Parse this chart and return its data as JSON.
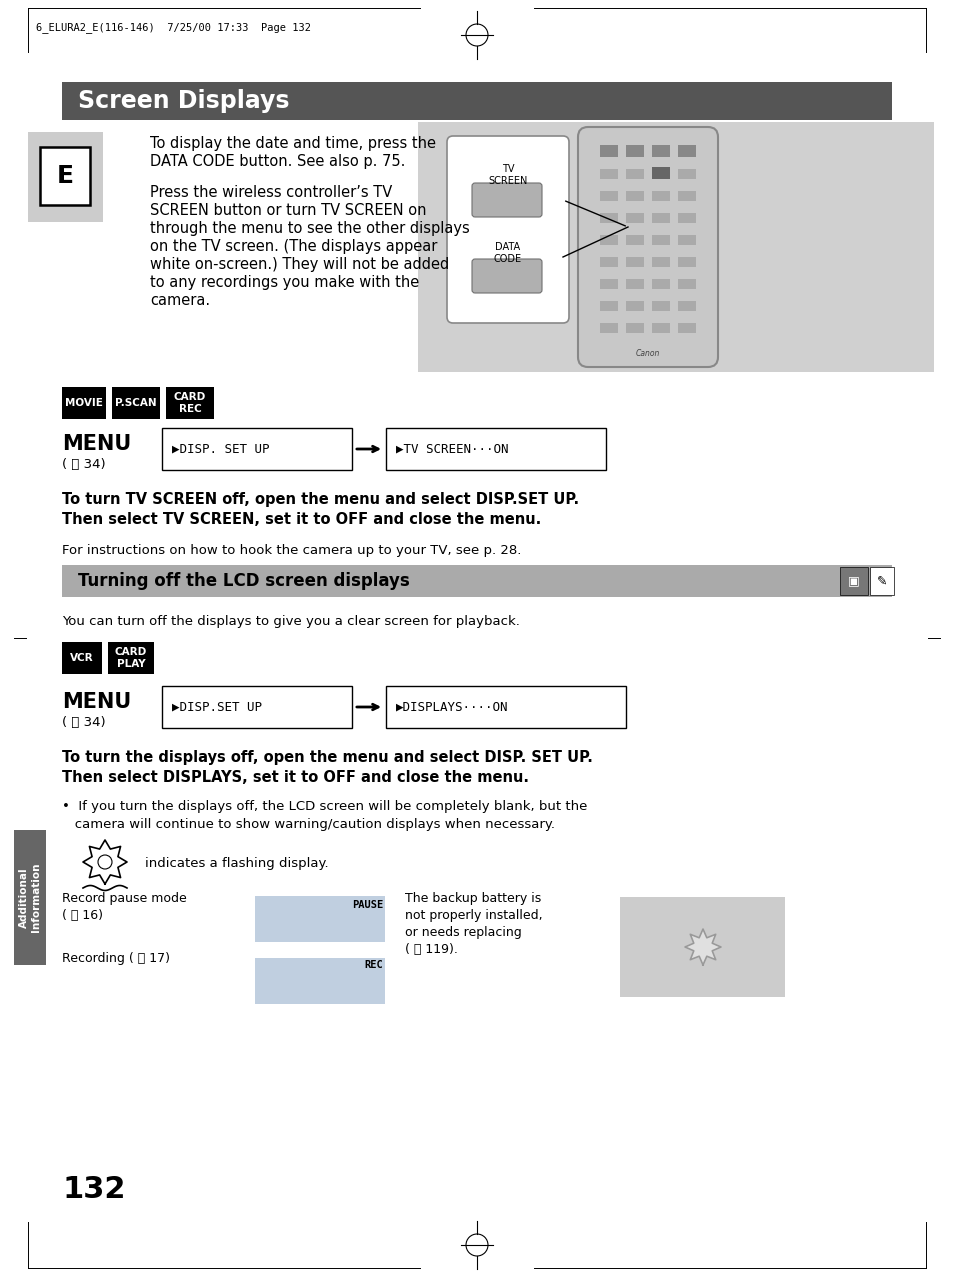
{
  "page_bg": "#ffffff",
  "header_text": "6_ELURA2_E(116-146)  7/25/00 17:33  Page 132",
  "main_title": "Screen Displays",
  "main_title_bg": "#555555",
  "main_title_color": "#ffffff",
  "section2_title": "Turning off the LCD screen displays",
  "section2_title_bg": "#aaaaaa",
  "section2_title_color": "#000000",
  "sidebar_bg": "#666666",
  "sidebar_label": "Additional\nInformation",
  "e_box_bg": "#cccccc",
  "e_box_text": "E",
  "para1_line1": "To display the date and time, press the",
  "para1_line2": "DATA CODE button. See also p. 75.",
  "para2_line1": "Press the wireless controller’s TV",
  "para2_line2": "SCREEN button or turn TV SCREEN on",
  "para2_line3": "through the menu to see the other displays",
  "para2_line4": "on the TV screen. (The displays appear",
  "para2_line5": "white on-screen.) They will not be added",
  "para2_line6": "to any recordings you make with the",
  "para2_line7": "camera.",
  "bold_text1_line1": "To turn TV SCREEN off, open the menu and select DISP.SET UP.",
  "bold_text1_line2": "Then select TV SCREEN, set it to OFF and close the menu.",
  "normal_text1": "For instructions on how to hook the camera up to your TV, see p. 28.",
  "lcd_para": "You can turn off the displays to give you a clear screen for playback.",
  "bold_text2_line1": "To turn the displays off, open the menu and select DISP. SET UP.",
  "bold_text2_line2": "Then select DISPLAYS, set it to OFF and close the menu.",
  "bullet1_line1": "•  If you turn the displays off, the LCD screen will be completely blank, but the",
  "bullet1_line2": "   camera will continue to show warning/caution displays when necessary.",
  "flash_text": "indicates a flashing display.",
  "record_pause_text1": "Record pause mode",
  "record_pause_text2": "( ⧨ 16)",
  "recording_text1": "Recording ( ⧨ 17)",
  "battery_text1": "The backup battery is",
  "battery_text2": "not properly installed,",
  "battery_text3": "or needs replacing",
  "battery_text4": "( ⧨ 119).",
  "page_num": "132",
  "menu_box1_text": "▶DISP. SET UP",
  "menu_box2_text": "▶TV SCREEN···ON",
  "menu_box3_text": "▶DISP.SET UP",
  "menu_box4_text": "▶DISPLAYS····ON",
  "menu_label": "MENU",
  "menu_sublabel": "( ⧨ 34)",
  "remote_bg": "#d0d0d0",
  "pause_box_color": "#c0cfe0",
  "rec_box_color": "#c0cfe0",
  "batt_box_color": "#cccccc"
}
